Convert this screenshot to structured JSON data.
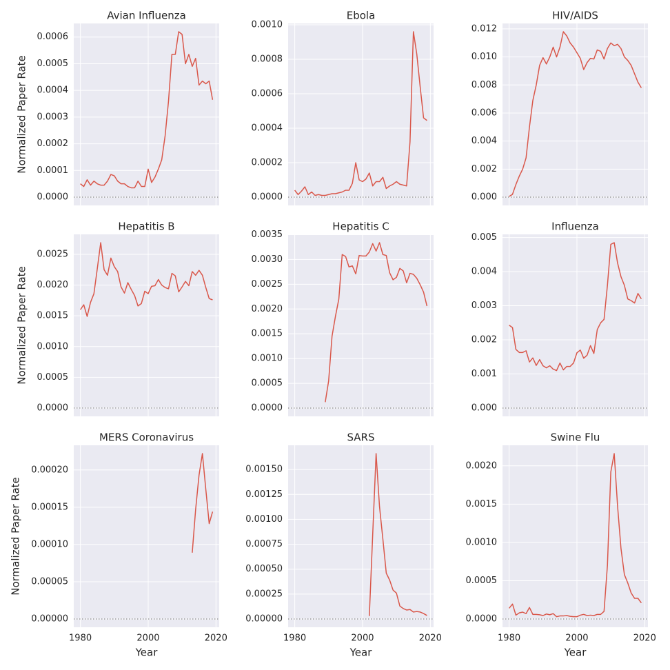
{
  "chart_data": [
    {
      "type": "line",
      "title": "Avian Influenza",
      "ylabel": "Normalized Paper Rate",
      "color": "#d9574a",
      "grid": true,
      "hline": 0,
      "x": [
        1980,
        1981,
        1982,
        1983,
        1984,
        1985,
        1986,
        1987,
        1988,
        1989,
        1990,
        1991,
        1992,
        1993,
        1994,
        1995,
        1996,
        1997,
        1998,
        1999,
        2000,
        2001,
        2002,
        2003,
        2004,
        2005,
        2006,
        2007,
        2008,
        2009,
        2010,
        2011,
        2012,
        2013,
        2014,
        2015,
        2016,
        2017,
        2018,
        2019
      ],
      "values": [
        5e-05,
        4e-05,
        6.5e-05,
        4.5e-05,
        6e-05,
        5e-05,
        4.5e-05,
        4.5e-05,
        6e-05,
        8.5e-05,
        8e-05,
        6e-05,
        5e-05,
        5e-05,
        4e-05,
        3.5e-05,
        3.5e-05,
        6e-05,
        4e-05,
        4e-05,
        0.000105,
        5.5e-05,
        7.5e-05,
        0.000105,
        0.00014,
        0.00023,
        0.00036,
        0.000535,
        0.000535,
        0.00062,
        0.00061,
        0.0005,
        0.000535,
        0.00049,
        0.00052,
        0.00042,
        0.000435,
        0.000425,
        0.000435,
        0.000365
      ],
      "xlim": [
        1978.05,
        2020.95
      ],
      "xticks": [
        1980,
        2000,
        2020
      ],
      "ylim": [
        -3.1e-05,
        0.000651
      ],
      "yticks": [
        {
          "value": 0,
          "label": "0.0000"
        },
        {
          "value": 0.0001,
          "label": "0.0001"
        },
        {
          "value": 0.0002,
          "label": "0.0002"
        },
        {
          "value": 0.0003,
          "label": "0.0003"
        },
        {
          "value": 0.0004,
          "label": "0.0004"
        },
        {
          "value": 0.0005,
          "label": "0.0005"
        },
        {
          "value": 0.0006,
          "label": "0.0006"
        }
      ]
    },
    {
      "type": "line",
      "title": "Ebola",
      "color": "#d9574a",
      "grid": true,
      "hline": 0,
      "x": [
        1980,
        1981,
        1982,
        1983,
        1984,
        1985,
        1986,
        1987,
        1988,
        1989,
        1990,
        1991,
        1992,
        1993,
        1994,
        1995,
        1996,
        1997,
        1998,
        1999,
        2000,
        2001,
        2002,
        2003,
        2004,
        2005,
        2006,
        2007,
        2008,
        2009,
        2010,
        2011,
        2012,
        2013,
        2014,
        2015,
        2016,
        2017,
        2018,
        2019
      ],
      "values": [
        4e-05,
        1.5e-05,
        3.5e-05,
        6e-05,
        1.5e-05,
        3e-05,
        1e-05,
        1.5e-05,
        1e-05,
        1e-05,
        1.5e-05,
        2e-05,
        2e-05,
        2.5e-05,
        3e-05,
        4e-05,
        4e-05,
        8e-05,
        0.0002,
        0.0001,
        9e-05,
        0.000105,
        0.00014,
        6.5e-05,
        9e-05,
        9e-05,
        0.000115,
        5e-05,
        6.5e-05,
        7.5e-05,
        9e-05,
        7.5e-05,
        7e-05,
        6.5e-05,
        0.00032,
        0.00096,
        0.00083,
        0.00064,
        0.00046,
        0.000445
      ],
      "xlim": [
        1978.05,
        2020.95
      ],
      "xticks": [
        1980,
        2000,
        2020
      ],
      "ylim": [
        -4.8e-05,
        0.001008
      ],
      "yticks": [
        {
          "value": 0,
          "label": "0.0000"
        },
        {
          "value": 0.0002,
          "label": "0.0002"
        },
        {
          "value": 0.0004,
          "label": "0.0004"
        },
        {
          "value": 0.0006,
          "label": "0.0006"
        },
        {
          "value": 0.0008,
          "label": "0.0008"
        },
        {
          "value": 0.001,
          "label": "0.0010"
        }
      ]
    },
    {
      "type": "line",
      "title": "HIV/AIDS",
      "color": "#d9574a",
      "grid": true,
      "hline": 0,
      "x": [
        1980,
        1981,
        1982,
        1983,
        1984,
        1985,
        1986,
        1987,
        1988,
        1989,
        1990,
        1991,
        1992,
        1993,
        1994,
        1995,
        1996,
        1997,
        1998,
        1999,
        2000,
        2001,
        2002,
        2003,
        2004,
        2005,
        2006,
        2007,
        2008,
        2009,
        2010,
        2011,
        2012,
        2013,
        2014,
        2015,
        2016,
        2017,
        2018,
        2019
      ],
      "values": [
        5e-05,
        0.0002,
        0.0009,
        0.0015,
        0.002,
        0.0028,
        0.005,
        0.0069,
        0.008,
        0.0094,
        0.00995,
        0.0095,
        0.01,
        0.0107,
        0.01,
        0.0107,
        0.0118,
        0.0115,
        0.011,
        0.0107,
        0.0103,
        0.0099,
        0.0091,
        0.0096,
        0.0099,
        0.00985,
        0.0105,
        0.0104,
        0.00985,
        0.0106,
        0.011,
        0.0108,
        0.0109,
        0.0106,
        0.01,
        0.00975,
        0.0094,
        0.0088,
        0.0082,
        0.0078
      ],
      "xlim": [
        1978.05,
        2020.95
      ],
      "xticks": [
        1980,
        2000,
        2020
      ],
      "ylim": [
        -0.00059,
        0.01239
      ],
      "yticks": [
        {
          "value": 0,
          "label": "0.000"
        },
        {
          "value": 0.002,
          "label": "0.002"
        },
        {
          "value": 0.004,
          "label": "0.004"
        },
        {
          "value": 0.006,
          "label": "0.006"
        },
        {
          "value": 0.008,
          "label": "0.008"
        },
        {
          "value": 0.01,
          "label": "0.010"
        },
        {
          "value": 0.012,
          "label": "0.012"
        }
      ]
    },
    {
      "type": "line",
      "title": "Hepatitis B",
      "ylabel": "Normalized Paper Rate",
      "color": "#d9574a",
      "grid": true,
      "hline": 0,
      "x": [
        1980,
        1981,
        1982,
        1983,
        1984,
        1985,
        1986,
        1987,
        1988,
        1989,
        1990,
        1991,
        1992,
        1993,
        1994,
        1995,
        1996,
        1997,
        1998,
        1999,
        2000,
        2001,
        2002,
        2003,
        2004,
        2005,
        2006,
        2007,
        2008,
        2009,
        2010,
        2011,
        2012,
        2013,
        2014,
        2015,
        2016,
        2017,
        2018,
        2019
      ],
      "values": [
        0.0016,
        0.00168,
        0.00149,
        0.00172,
        0.00186,
        0.00227,
        0.00269,
        0.00225,
        0.00216,
        0.00244,
        0.0023,
        0.00222,
        0.00197,
        0.00187,
        0.00204,
        0.00193,
        0.00183,
        0.00166,
        0.0017,
        0.0019,
        0.00186,
        0.00198,
        0.00199,
        0.00209,
        0.002,
        0.00196,
        0.00194,
        0.00219,
        0.00215,
        0.00189,
        0.00197,
        0.00206,
        0.00199,
        0.00222,
        0.00216,
        0.00224,
        0.00216,
        0.00196,
        0.00178,
        0.00176
      ],
      "xlim": [
        1978.05,
        2020.95
      ],
      "xticks": [
        1980,
        2000,
        2020
      ],
      "ylim": [
        -0.000135,
        0.002825
      ],
      "yticks": [
        {
          "value": 0,
          "label": "0.0000"
        },
        {
          "value": 0.0005,
          "label": "0.0005"
        },
        {
          "value": 0.001,
          "label": "0.0010"
        },
        {
          "value": 0.0015,
          "label": "0.0015"
        },
        {
          "value": 0.002,
          "label": "0.0020"
        },
        {
          "value": 0.0025,
          "label": "0.0025"
        }
      ]
    },
    {
      "type": "line",
      "title": "Hepatitis C",
      "color": "#d9574a",
      "grid": true,
      "hline": 0,
      "x": [
        1980,
        1981,
        1982,
        1983,
        1984,
        1985,
        1986,
        1987,
        1988,
        1989,
        1990,
        1991,
        1992,
        1993,
        1994,
        1995,
        1996,
        1997,
        1998,
        1999,
        2000,
        2001,
        2002,
        2003,
        2004,
        2005,
        2006,
        2007,
        2008,
        2009,
        2010,
        2011,
        2012,
        2013,
        2014,
        2015,
        2016,
        2017,
        2018,
        2019
      ],
      "values": [
        null,
        null,
        null,
        null,
        null,
        null,
        null,
        null,
        null,
        0.00012,
        0.00055,
        0.00145,
        0.00185,
        0.0022,
        0.0031,
        0.00306,
        0.00285,
        0.00287,
        0.00271,
        0.00308,
        0.00307,
        0.00307,
        0.00315,
        0.00332,
        0.00317,
        0.00334,
        0.0031,
        0.00308,
        0.00273,
        0.00259,
        0.00264,
        0.00282,
        0.00277,
        0.00253,
        0.00272,
        0.0027,
        0.00262,
        0.00249,
        0.00234,
        0.00206
      ],
      "xlim": [
        1978.05,
        2020.95
      ],
      "xticks": [
        1980,
        2000,
        2020
      ],
      "ylim": [
        -0.000167,
        0.003507
      ],
      "yticks": [
        {
          "value": 0,
          "label": "0.0000"
        },
        {
          "value": 0.0005,
          "label": "0.0005"
        },
        {
          "value": 0.001,
          "label": "0.0010"
        },
        {
          "value": 0.0015,
          "label": "0.0015"
        },
        {
          "value": 0.002,
          "label": "0.0020"
        },
        {
          "value": 0.0025,
          "label": "0.0025"
        },
        {
          "value": 0.003,
          "label": "0.0030"
        },
        {
          "value": 0.0035,
          "label": "0.0035"
        }
      ]
    },
    {
      "type": "line",
      "title": "Influenza",
      "color": "#d9574a",
      "grid": true,
      "hline": 0,
      "x": [
        1980,
        1981,
        1982,
        1983,
        1984,
        1985,
        1986,
        1987,
        1988,
        1989,
        1990,
        1991,
        1992,
        1993,
        1994,
        1995,
        1996,
        1997,
        1998,
        1999,
        2000,
        2001,
        2002,
        2003,
        2004,
        2005,
        2006,
        2007,
        2008,
        2009,
        2010,
        2011,
        2012,
        2013,
        2014,
        2015,
        2016,
        2017,
        2018,
        2019
      ],
      "values": [
        0.00243,
        0.00236,
        0.00172,
        0.00163,
        0.00163,
        0.00168,
        0.00135,
        0.00147,
        0.00125,
        0.00142,
        0.00124,
        0.00118,
        0.00124,
        0.00114,
        0.0011,
        0.00132,
        0.00112,
        0.00122,
        0.00122,
        0.00132,
        0.00162,
        0.0017,
        0.00146,
        0.00155,
        0.00183,
        0.0016,
        0.0023,
        0.0025,
        0.0026,
        0.0036,
        0.0048,
        0.00485,
        0.00425,
        0.00385,
        0.0036,
        0.0032,
        0.00315,
        0.00308,
        0.00336,
        0.0032
      ],
      "xlim": [
        1978.05,
        2020.95
      ],
      "xticks": [
        1980,
        2000,
        2020
      ],
      "ylim": [
        -0.000243,
        0.005093
      ],
      "yticks": [
        {
          "value": 0,
          "label": "0.000"
        },
        {
          "value": 0.001,
          "label": "0.001"
        },
        {
          "value": 0.002,
          "label": "0.002"
        },
        {
          "value": 0.003,
          "label": "0.003"
        },
        {
          "value": 0.004,
          "label": "0.004"
        },
        {
          "value": 0.005,
          "label": "0.005"
        }
      ]
    },
    {
      "type": "line",
      "title": "MERS Coronavirus",
      "ylabel": "Normalized Paper Rate",
      "xlabel": "Year",
      "color": "#d9574a",
      "grid": true,
      "hline": 0,
      "x": [
        1980,
        1981,
        1982,
        1983,
        1984,
        1985,
        1986,
        1987,
        1988,
        1989,
        1990,
        1991,
        1992,
        1993,
        1994,
        1995,
        1996,
        1997,
        1998,
        1999,
        2000,
        2001,
        2002,
        2003,
        2004,
        2005,
        2006,
        2007,
        2008,
        2009,
        2010,
        2011,
        2012,
        2013,
        2014,
        2015,
        2016,
        2017,
        2018,
        2019
      ],
      "values": [
        null,
        null,
        null,
        null,
        null,
        null,
        null,
        null,
        null,
        null,
        null,
        null,
        null,
        null,
        null,
        null,
        null,
        null,
        null,
        null,
        null,
        null,
        null,
        null,
        null,
        null,
        null,
        null,
        null,
        null,
        null,
        null,
        null,
        8.9e-05,
        0.000147,
        0.000193,
        0.000222,
        0.000174,
        0.000128,
        0.000144
      ],
      "xlim": [
        1978.05,
        2020.95
      ],
      "xticks": [
        1980,
        2000,
        2020
      ],
      "ylim": [
        -1.11e-05,
        0.0002331
      ],
      "yticks": [
        {
          "value": 0,
          "label": "0.00000"
        },
        {
          "value": 5e-05,
          "label": "0.00005"
        },
        {
          "value": 0.0001,
          "label": "0.00010"
        },
        {
          "value": 0.00015,
          "label": "0.00015"
        },
        {
          "value": 0.0002,
          "label": "0.00020"
        }
      ]
    },
    {
      "type": "line",
      "title": "SARS",
      "xlabel": "Year",
      "color": "#d9574a",
      "grid": true,
      "hline": 0,
      "x": [
        1980,
        1981,
        1982,
        1983,
        1984,
        1985,
        1986,
        1987,
        1988,
        1989,
        1990,
        1991,
        1992,
        1993,
        1994,
        1995,
        1996,
        1997,
        1998,
        1999,
        2000,
        2001,
        2002,
        2003,
        2004,
        2005,
        2006,
        2007,
        2008,
        2009,
        2010,
        2011,
        2012,
        2013,
        2014,
        2015,
        2016,
        2017,
        2018,
        2019
      ],
      "values": [
        null,
        null,
        null,
        null,
        null,
        null,
        null,
        null,
        null,
        null,
        null,
        null,
        null,
        null,
        null,
        null,
        null,
        null,
        null,
        null,
        null,
        null,
        3e-05,
        0.00085,
        0.00166,
        0.00113,
        0.0008,
        0.00046,
        0.00039,
        0.00029,
        0.00026,
        0.00013,
        0.000105,
        9e-05,
        9.5e-05,
        7e-05,
        7.5e-05,
        7e-05,
        5.5e-05,
        3.5e-05
      ],
      "xlim": [
        1978.05,
        2020.95
      ],
      "xticks": [
        1980,
        2000,
        2020
      ],
      "ylim": [
        -8.3e-05,
        0.001743
      ],
      "yticks": [
        {
          "value": 0,
          "label": "0.00000"
        },
        {
          "value": 0.00025,
          "label": "0.00025"
        },
        {
          "value": 0.0005,
          "label": "0.00050"
        },
        {
          "value": 0.00075,
          "label": "0.00075"
        },
        {
          "value": 0.001,
          "label": "0.00100"
        },
        {
          "value": 0.00125,
          "label": "0.00125"
        },
        {
          "value": 0.0015,
          "label": "0.00150"
        }
      ]
    },
    {
      "type": "line",
      "title": "Swine Flu",
      "xlabel": "Year",
      "color": "#d9574a",
      "grid": true,
      "hline": 0,
      "x": [
        1980,
        1981,
        1982,
        1983,
        1984,
        1985,
        1986,
        1987,
        1988,
        1989,
        1990,
        1991,
        1992,
        1993,
        1994,
        1995,
        1996,
        1997,
        1998,
        1999,
        2000,
        2001,
        2002,
        2003,
        2004,
        2005,
        2006,
        2007,
        2008,
        2009,
        2010,
        2011,
        2012,
        2013,
        2014,
        2015,
        2016,
        2017,
        2018,
        2019
      ],
      "values": [
        0.00014,
        0.000195,
        5e-05,
        8e-05,
        9e-05,
        7e-05,
        0.00015,
        6e-05,
        6e-05,
        5.5e-05,
        4.5e-05,
        6.5e-05,
        5.5e-05,
        7e-05,
        3e-05,
        4e-05,
        4e-05,
        4.5e-05,
        3.5e-05,
        3e-05,
        3e-05,
        5e-05,
        6e-05,
        4.5e-05,
        5e-05,
        4.5e-05,
        6e-05,
        6e-05,
        0.0001,
        0.0007,
        0.00192,
        0.00216,
        0.00147,
        0.00092,
        0.00058,
        0.00047,
        0.00034,
        0.00027,
        0.00027,
        0.00021
      ],
      "xlim": [
        1978.05,
        2020.95
      ],
      "xticks": [
        1980,
        2000,
        2020
      ],
      "ylim": [
        -0.000108,
        0.002268
      ],
      "yticks": [
        {
          "value": 0,
          "label": "0.0000"
        },
        {
          "value": 0.0005,
          "label": "0.0005"
        },
        {
          "value": 0.001,
          "label": "0.0010"
        },
        {
          "value": 0.0015,
          "label": "0.0015"
        },
        {
          "value": 0.002,
          "label": "0.0020"
        }
      ]
    }
  ]
}
